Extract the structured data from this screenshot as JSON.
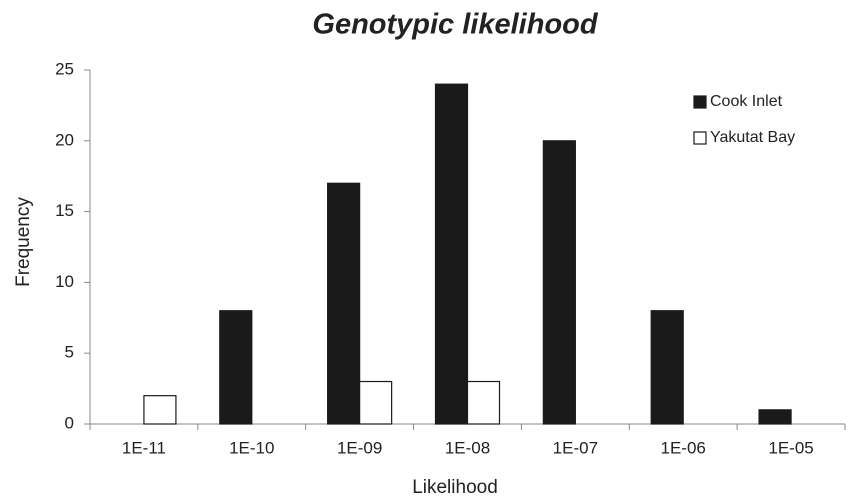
{
  "chart_data": {
    "type": "bar",
    "title": "Genotypic likelihood",
    "x_label": "Likelihood",
    "y_label": "Frequency",
    "categories": [
      "1E-11",
      "1E-10",
      "1E-09",
      "1E-08",
      "1E-07",
      "1E-06",
      "1E-05"
    ],
    "series": [
      {
        "name": "Cook Inlet",
        "color": "#1a1a1a",
        "values": [
          0,
          8,
          17,
          24,
          20,
          8,
          1
        ]
      },
      {
        "name": "Yakutat Bay",
        "color": "#ffffff",
        "values": [
          2,
          0,
          3,
          3,
          0,
          0,
          0
        ]
      }
    ],
    "ylim": [
      0,
      25
    ],
    "yticks": [
      0,
      5,
      10,
      15,
      20,
      25
    ],
    "grid": false,
    "legend": "top-right"
  }
}
